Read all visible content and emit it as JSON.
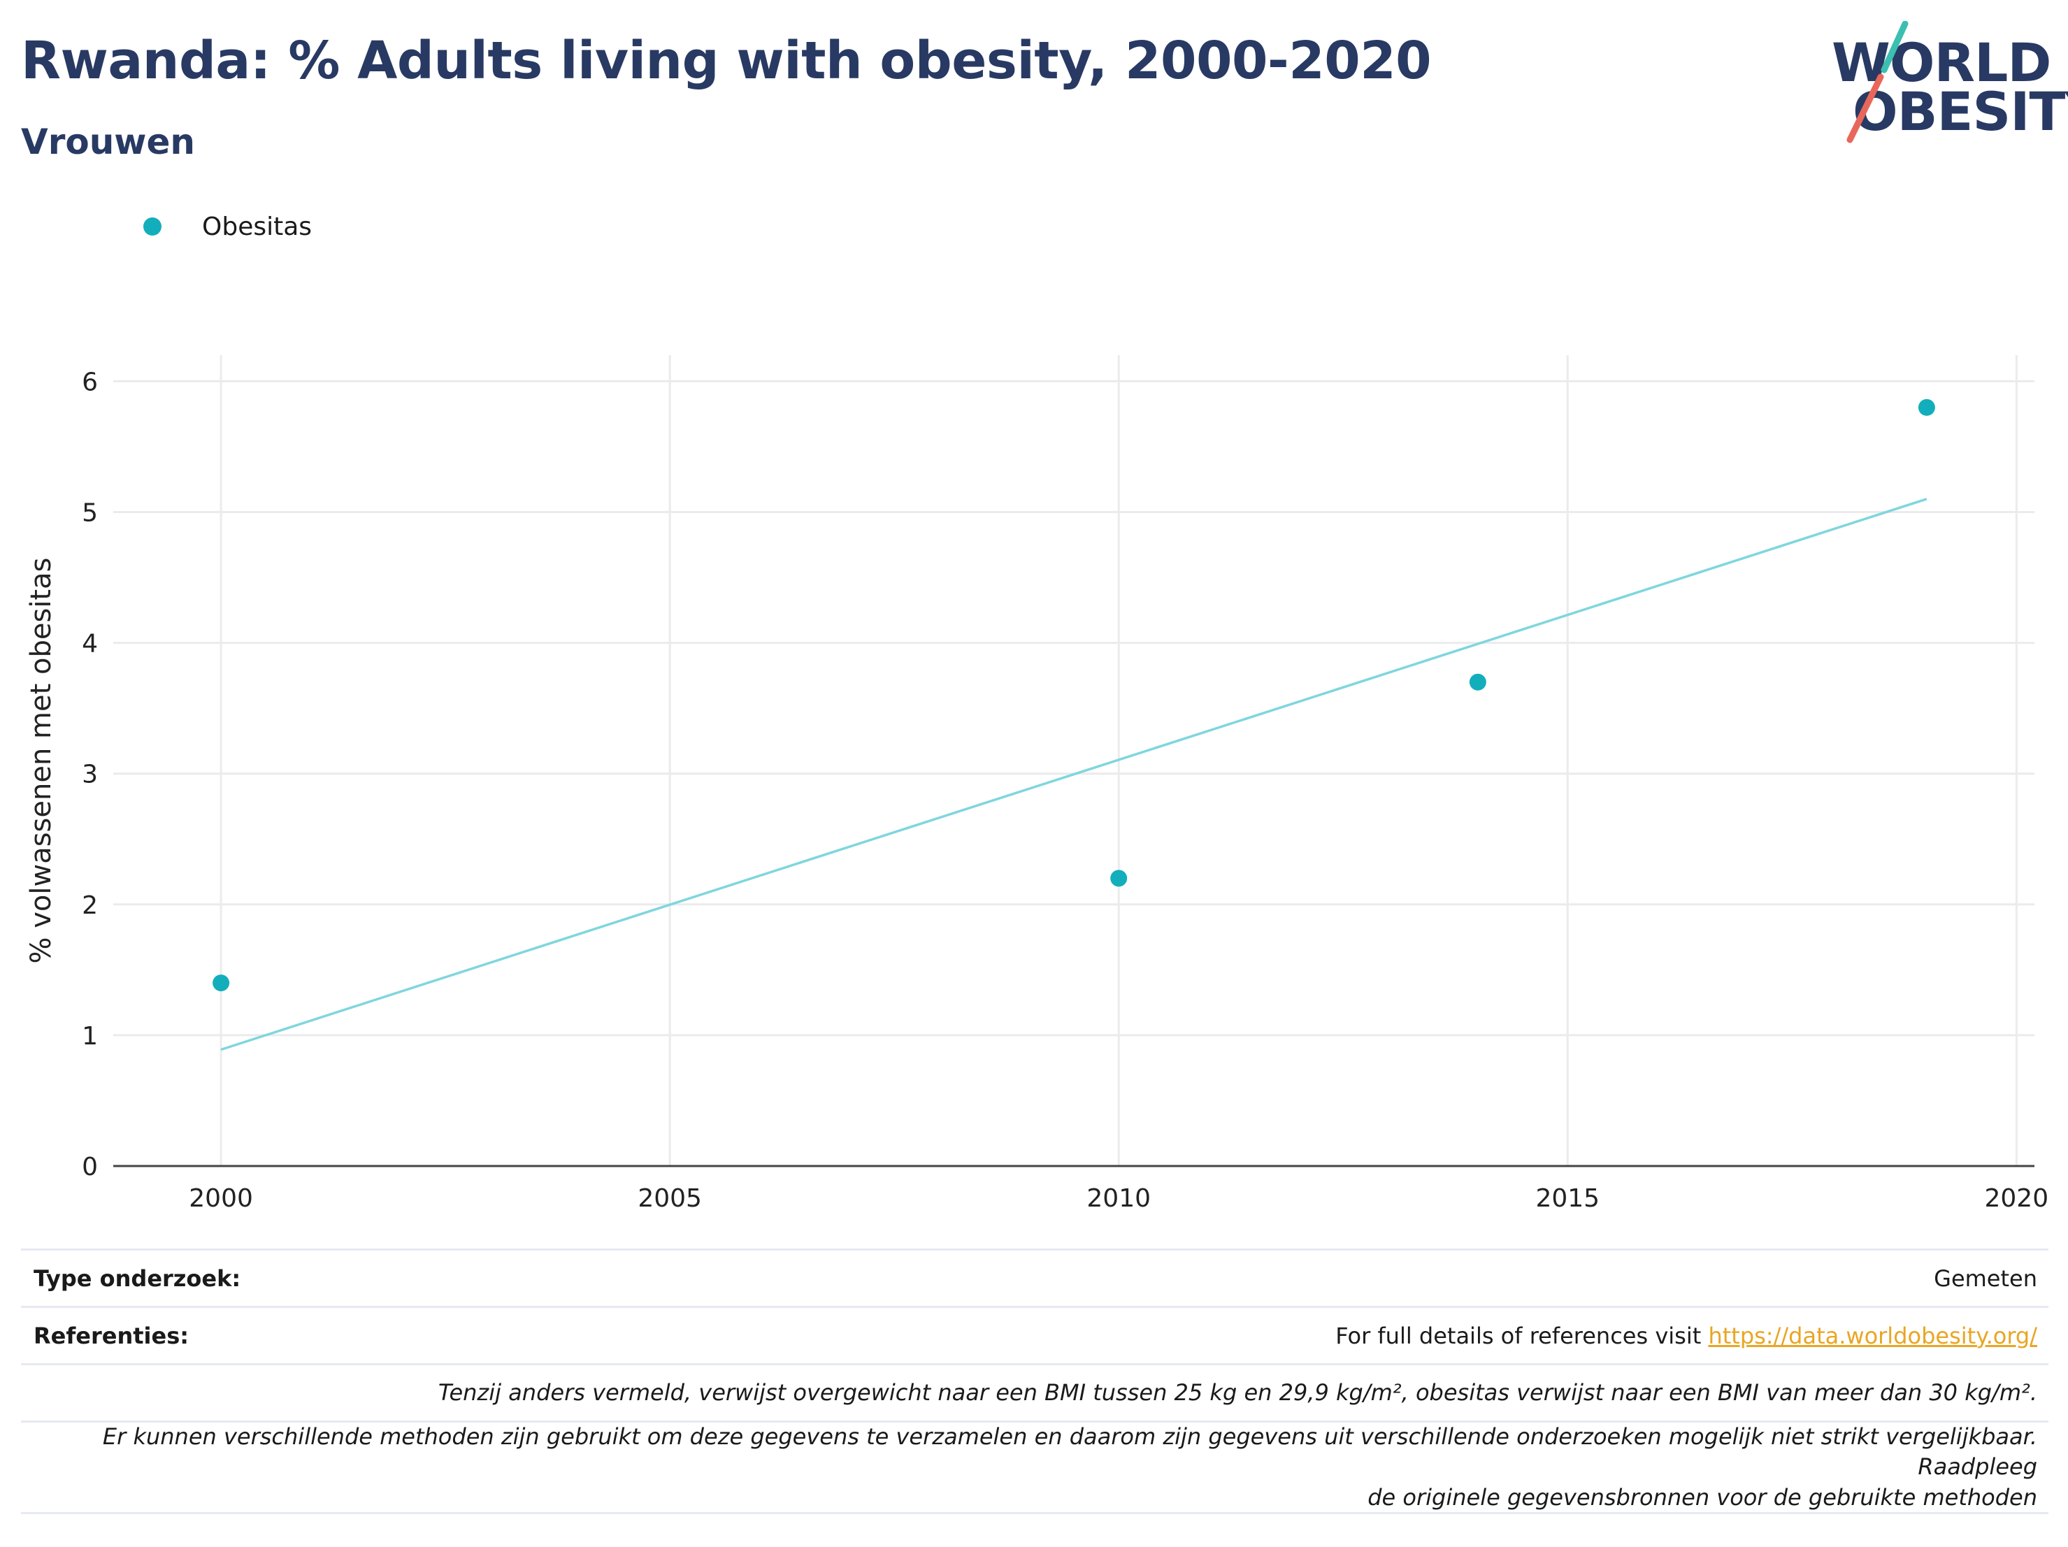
{
  "header": {
    "title": "Rwanda: % Adults living with obesity, 2000-2020",
    "subtitle": "Vrouwen"
  },
  "logo": {
    "line1": "WORLD",
    "line2": "OBESITY",
    "teal": "#3bbfb0",
    "coral": "#e8675a"
  },
  "legend": {
    "label": "Obesitas",
    "color": "#13aebb"
  },
  "chart_data": {
    "type": "scatter",
    "title": "Rwanda: % Adults living with obesity, 2000-2020",
    "subtitle": "Vrouwen",
    "ylabel": "% volwassenen met obesitas",
    "xlabel": "",
    "xlim": [
      1998.8,
      2020.2
    ],
    "ylim": [
      0,
      6.2
    ],
    "xticks": [
      2000,
      2005,
      2010,
      2015,
      2020
    ],
    "yticks": [
      0,
      1,
      2,
      3,
      4,
      5,
      6
    ],
    "grid": true,
    "legend_position": "top-left",
    "series": [
      {
        "name": "Obesitas",
        "type": "scatter",
        "color": "#13aebb",
        "x": [
          2000,
          2010,
          2014,
          2019
        ],
        "y": [
          1.4,
          2.2,
          3.7,
          5.8
        ]
      },
      {
        "type": "line",
        "color": "#7fd6de",
        "x": [
          2000,
          2019
        ],
        "y": [
          0.89,
          5.1
        ]
      }
    ]
  },
  "footer": {
    "survey_type_label": "Type onderzoek:",
    "survey_type_value": "Gemeten",
    "references_label": "Referenties:",
    "references_text": "For full details of references visit ",
    "references_link": "https://data.worldobesity.org/",
    "note1": "Tenzij anders vermeld, verwijst overgewicht naar een BMI tussen 25 kg en 29,9 kg/m², obesitas verwijst naar een BMI van meer dan 30 kg/m².",
    "note2_line1": "Er kunnen verschillende methoden zijn gebruikt om deze gegevens te verzamelen en daarom zijn gegevens uit verschillende onderzoeken mogelijk niet strikt vergelijkbaar. Raadpleeg",
    "note2_line2": "de originele gegevensbronnen voor de gebruikte methoden",
    "link_color": "#e8a623"
  }
}
